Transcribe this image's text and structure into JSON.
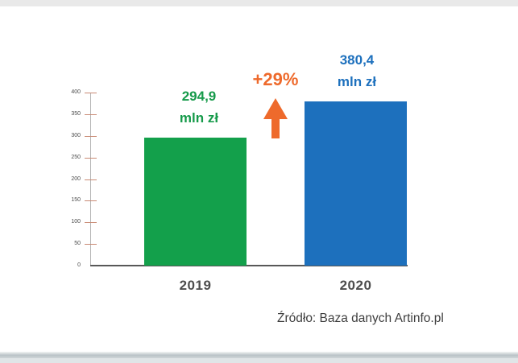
{
  "page": {
    "background_color": "#e9e9e9",
    "paper_color": "#ffffff"
  },
  "chart_data": {
    "type": "bar",
    "title": "",
    "categories": [
      "2019",
      "2020"
    ],
    "values": [
      294.9,
      380.4
    ],
    "bar_colors": [
      "#13a04b",
      "#1d70bd"
    ],
    "value_label_lines": [
      [
        "294,9",
        "mln zł"
      ],
      [
        "380,4",
        "mln zł"
      ]
    ],
    "value_label_colors": [
      "#169a4a",
      "#1d70bd"
    ],
    "annotation": {
      "text": "+29%",
      "color": "#ee6a2c",
      "arrow_direction": "up"
    },
    "xlabel": "",
    "ylabel": "",
    "ylim": [
      0,
      400
    ],
    "yticks": [
      400,
      350,
      300,
      250,
      200,
      150,
      100,
      50,
      0
    ],
    "tick_mark_color": "#c98a74",
    "axis_color": "#b3b3b3",
    "baseline_color": "#585858",
    "grid": false,
    "legend": null,
    "source_note": "Źródło: Baza danych Artinfo.pl"
  }
}
